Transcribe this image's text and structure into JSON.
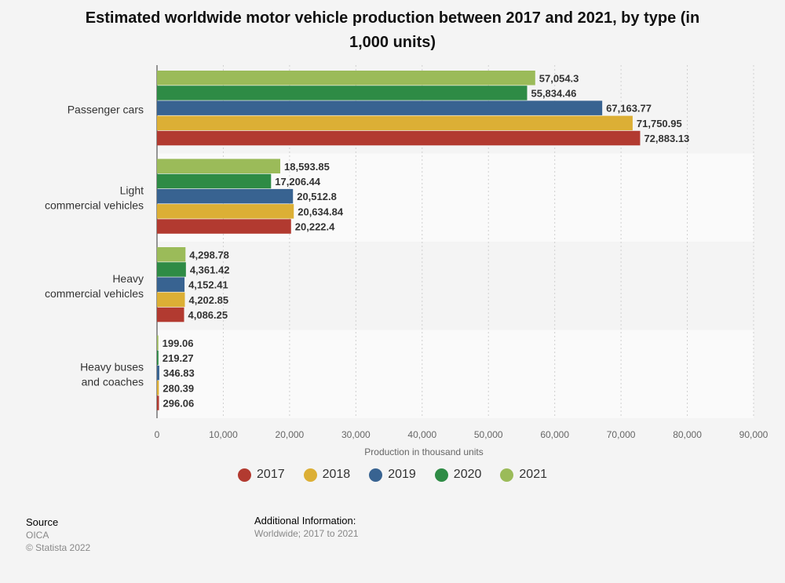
{
  "chart_data": {
    "type": "bar",
    "orientation": "horizontal",
    "title": "Estimated worldwide motor vehicle production between 2017 and 2021, by type (in 1,000 units)",
    "xlabel": "Production in thousand units",
    "ylabel": "",
    "xlim": [
      0,
      90000
    ],
    "x_ticks": [
      "0",
      "10,000",
      "20,000",
      "30,000",
      "40,000",
      "50,000",
      "60,000",
      "70,000",
      "80,000",
      "90,000"
    ],
    "x_tick_values": [
      0,
      10000,
      20000,
      30000,
      40000,
      50000,
      60000,
      70000,
      80000,
      90000
    ],
    "categories": [
      [
        "Passenger cars"
      ],
      [
        "Light",
        "commercial vehicles"
      ],
      [
        "Heavy",
        "commercial vehicles"
      ],
      [
        "Heavy buses",
        "and coaches"
      ]
    ],
    "series": [
      {
        "name": "2021",
        "color": "#9bbb59",
        "values": [
          57054.3,
          18593.85,
          4298.78,
          199.06
        ],
        "labels": [
          "57,054.3",
          "18,593.85",
          "4,298.78",
          "199.06"
        ]
      },
      {
        "name": "2020",
        "color": "#2e8b45",
        "values": [
          55834.46,
          17206.44,
          4361.42,
          219.27
        ],
        "labels": [
          "55,834.46",
          "17,206.44",
          "4,361.42",
          "219.27"
        ]
      },
      {
        "name": "2019",
        "color": "#386391",
        "values": [
          67163.77,
          20512.8,
          4152.41,
          346.83
        ],
        "labels": [
          "67,163.77",
          "20,512.8",
          "4,152.41",
          "346.83"
        ]
      },
      {
        "name": "2018",
        "color": "#dcaf35",
        "values": [
          71750.95,
          20634.84,
          4202.85,
          280.39
        ],
        "labels": [
          "71,750.95",
          "20,634.84",
          "4,202.85",
          "280.39"
        ]
      },
      {
        "name": "2017",
        "color": "#b23a30",
        "values": [
          72883.13,
          20222.4,
          4086.25,
          296.06
        ],
        "labels": [
          "72,883.13",
          "20,222.4",
          "4,086.25",
          "296.06"
        ]
      }
    ],
    "legend_order": [
      "2017",
      "2018",
      "2019",
      "2020",
      "2021"
    ],
    "grid": true,
    "legend_position": "bottom"
  },
  "legend": [
    {
      "label": "2017",
      "color": "#b23a30"
    },
    {
      "label": "2018",
      "color": "#dcaf35"
    },
    {
      "label": "2019",
      "color": "#386391"
    },
    {
      "label": "2020",
      "color": "#2e8b45"
    },
    {
      "label": "2021",
      "color": "#9bbb59"
    }
  ],
  "footer": {
    "source_heading": "Source",
    "source_name": "OICA",
    "copyright": "© Statista 2022",
    "info_heading": "Additional Information:",
    "info_text": "Worldwide; 2017 to 2021"
  }
}
